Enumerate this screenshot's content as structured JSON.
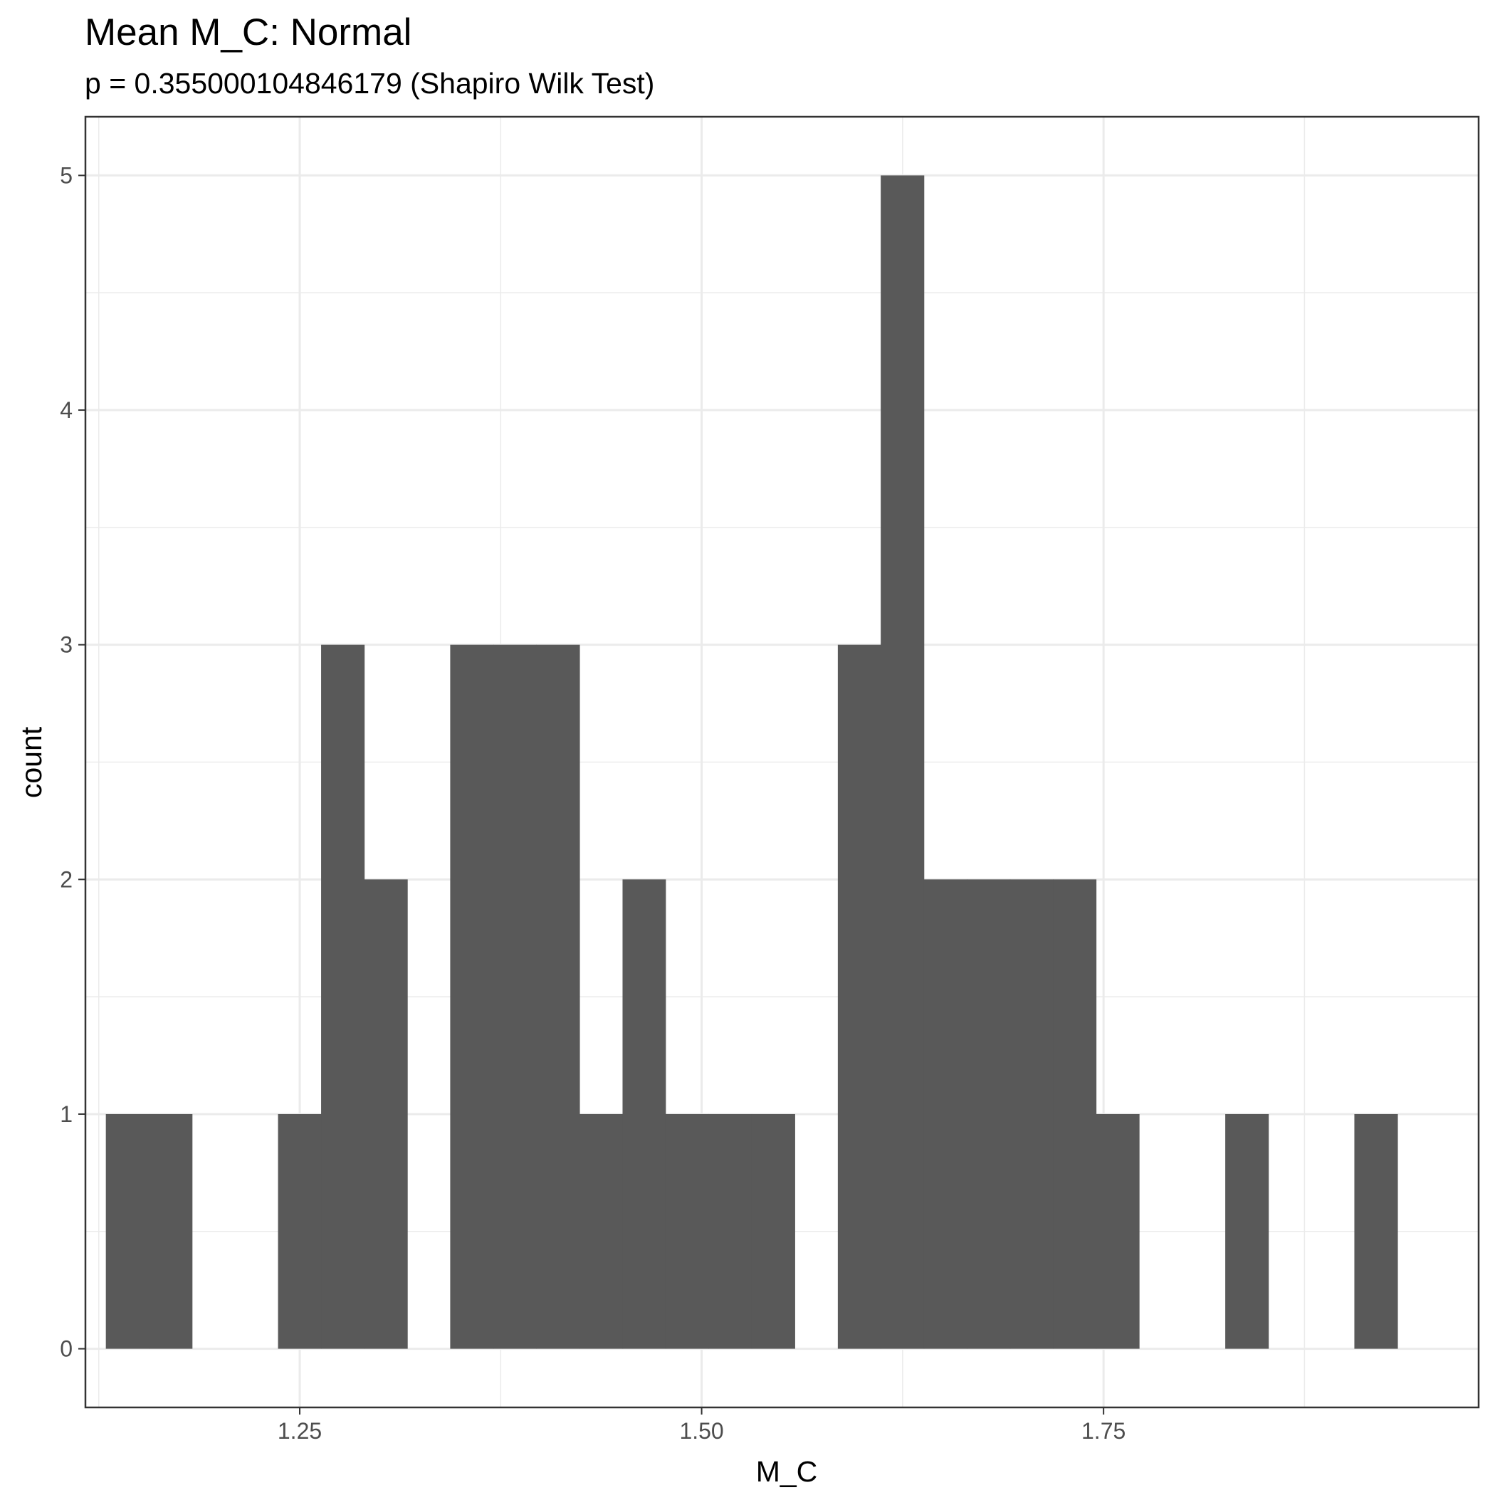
{
  "chart_data": {
    "type": "bar",
    "title": "Mean M_C: Normal",
    "subtitle": "p = 0.355000104846179 (Shapiro Wilk Test)",
    "xlabel": "M_C",
    "ylabel": "count",
    "xlim": [
      1.1167,
      1.9833
    ],
    "ylim": [
      -0.25,
      5.25
    ],
    "x_ticks": [
      1.25,
      1.5,
      1.75
    ],
    "x_tick_labels": [
      "1.25",
      "1.50",
      "1.75"
    ],
    "y_ticks": [
      0,
      1,
      2,
      3,
      4,
      5
    ],
    "y_tick_labels": [
      "0",
      "1",
      "2",
      "3",
      "4",
      "5"
    ],
    "grid": true,
    "bar_color": "#595959",
    "bins": [
      {
        "xmin": 1.1294,
        "xmax": 1.1562,
        "count": 1
      },
      {
        "xmin": 1.1562,
        "xmax": 1.183,
        "count": 1
      },
      {
        "xmin": 1.183,
        "xmax": 1.2097,
        "count": 0
      },
      {
        "xmin": 1.2097,
        "xmax": 1.2365,
        "count": 0
      },
      {
        "xmin": 1.2365,
        "xmax": 1.2633,
        "count": 1
      },
      {
        "xmin": 1.2633,
        "xmax": 1.2901,
        "count": 3
      },
      {
        "xmin": 1.2901,
        "xmax": 1.3169,
        "count": 2
      },
      {
        "xmin": 1.3169,
        "xmax": 1.3436,
        "count": 0
      },
      {
        "xmin": 1.3436,
        "xmax": 1.3704,
        "count": 3
      },
      {
        "xmin": 1.3704,
        "xmax": 1.3972,
        "count": 3
      },
      {
        "xmin": 1.3972,
        "xmax": 1.424,
        "count": 3
      },
      {
        "xmin": 1.424,
        "xmax": 1.4508,
        "count": 1
      },
      {
        "xmin": 1.4508,
        "xmax": 1.4775,
        "count": 2
      },
      {
        "xmin": 1.4775,
        "xmax": 1.5043,
        "count": 1
      },
      {
        "xmin": 1.5043,
        "xmax": 1.5311,
        "count": 1
      },
      {
        "xmin": 1.5311,
        "xmax": 1.5579,
        "count": 1
      },
      {
        "xmin": 1.5579,
        "xmax": 1.5847,
        "count": 0
      },
      {
        "xmin": 1.5847,
        "xmax": 1.6114,
        "count": 3
      },
      {
        "xmin": 1.6114,
        "xmax": 1.6382,
        "count": 5
      },
      {
        "xmin": 1.6382,
        "xmax": 1.665,
        "count": 2
      },
      {
        "xmin": 1.665,
        "xmax": 1.6918,
        "count": 2
      },
      {
        "xmin": 1.6918,
        "xmax": 1.7186,
        "count": 2
      },
      {
        "xmin": 1.7186,
        "xmax": 1.7453,
        "count": 2
      },
      {
        "xmin": 1.7453,
        "xmax": 1.7721,
        "count": 1
      },
      {
        "xmin": 1.7721,
        "xmax": 1.7989,
        "count": 0
      },
      {
        "xmin": 1.7989,
        "xmax": 1.8257,
        "count": 0
      },
      {
        "xmin": 1.8257,
        "xmax": 1.8525,
        "count": 1
      },
      {
        "xmin": 1.8525,
        "xmax": 1.8792,
        "count": 0
      },
      {
        "xmin": 1.8792,
        "xmax": 1.906,
        "count": 0
      },
      {
        "xmin": 1.906,
        "xmax": 1.9328,
        "count": 1
      }
    ]
  }
}
